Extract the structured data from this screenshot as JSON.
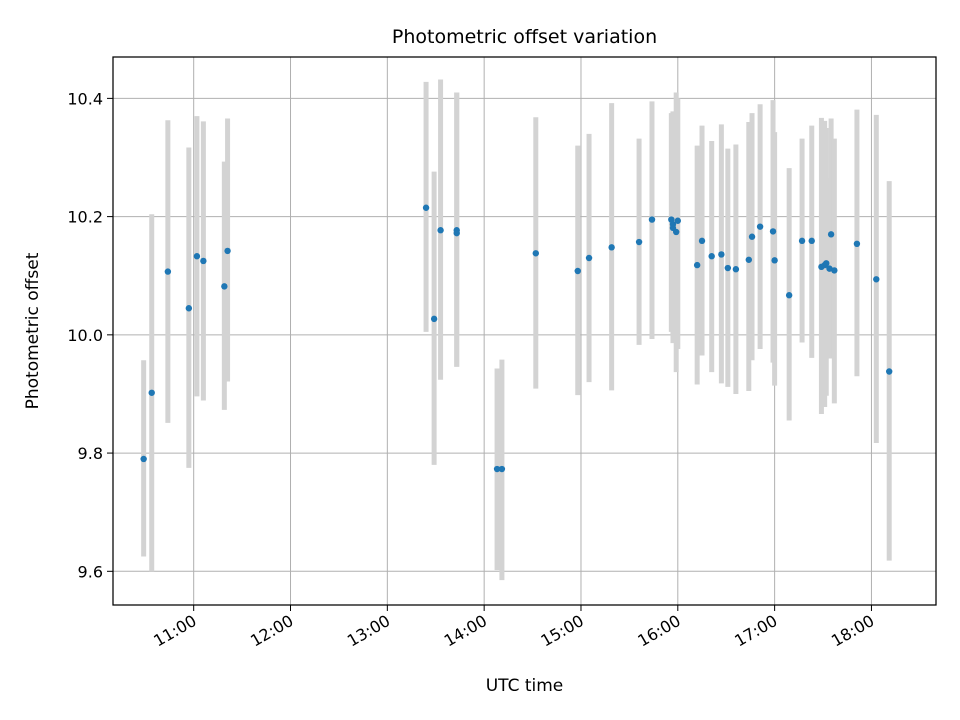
{
  "chart_data": {
    "type": "scatter",
    "title": "Photometric offset variation",
    "xlabel": "UTC time",
    "ylabel": "Photometric offset",
    "x_unit": "UTC hour",
    "xlim": [
      "10:10",
      "18:40"
    ],
    "ylim": [
      9.543,
      10.47
    ],
    "x_ticks": [
      "11:00",
      "12:00",
      "13:00",
      "14:00",
      "15:00",
      "16:00",
      "17:00",
      "18:00"
    ],
    "y_ticks": [
      "9.6",
      "9.8",
      "10.0",
      "10.2",
      "10.4"
    ],
    "grid": true,
    "colors": {
      "point": "#1f77b4",
      "errorbar": "#d3d3d3",
      "grid": "#b0b0b0"
    },
    "series": [
      {
        "points": [
          {
            "x": "10:29",
            "y": 9.79,
            "ylow": 9.625,
            "yhigh": 9.957
          },
          {
            "x": "10:34",
            "y": 9.902,
            "ylow": 9.6,
            "yhigh": 10.204
          },
          {
            "x": "10:44",
            "y": 10.107,
            "ylow": 9.851,
            "yhigh": 10.363
          },
          {
            "x": "10:57",
            "y": 10.045,
            "ylow": 9.775,
            "yhigh": 10.317
          },
          {
            "x": "11:02",
            "y": 10.133,
            "ylow": 9.896,
            "yhigh": 10.37
          },
          {
            "x": "11:06",
            "y": 10.125,
            "ylow": 9.889,
            "yhigh": 10.361
          },
          {
            "x": "11:19",
            "y": 10.082,
            "ylow": 9.873,
            "yhigh": 10.293
          },
          {
            "x": "11:21",
            "y": 10.142,
            "ylow": 9.921,
            "yhigh": 10.366
          },
          {
            "x": "13:24",
            "y": 10.215,
            "ylow": 10.005,
            "yhigh": 10.428
          },
          {
            "x": "13:29",
            "y": 10.027,
            "ylow": 9.78,
            "yhigh": 10.276
          },
          {
            "x": "13:33",
            "y": 10.177,
            "ylow": 9.924,
            "yhigh": 10.432
          },
          {
            "x": "13:43",
            "y": 10.177,
            "ylow": 9.946,
            "yhigh": 10.41
          },
          {
            "x": "13:43",
            "y": 10.172,
            "ylow": 9.946,
            "yhigh": 10.41
          },
          {
            "x": "14:08",
            "y": 9.773,
            "ylow": 9.602,
            "yhigh": 9.943
          },
          {
            "x": "14:11",
            "y": 9.773,
            "ylow": 9.585,
            "yhigh": 9.958
          },
          {
            "x": "14:32",
            "y": 10.138,
            "ylow": 9.909,
            "yhigh": 10.368
          },
          {
            "x": "14:58",
            "y": 10.108,
            "ylow": 9.898,
            "yhigh": 10.32
          },
          {
            "x": "15:05",
            "y": 10.13,
            "ylow": 9.92,
            "yhigh": 10.34
          },
          {
            "x": "15:19",
            "y": 10.148,
            "ylow": 9.906,
            "yhigh": 10.392
          },
          {
            "x": "15:36",
            "y": 10.157,
            "ylow": 9.983,
            "yhigh": 10.332
          },
          {
            "x": "15:44",
            "y": 10.195,
            "ylow": 9.993,
            "yhigh": 10.395
          },
          {
            "x": "15:56",
            "y": 10.195,
            "ylow": 10.005,
            "yhigh": 10.375
          },
          {
            "x": "15:57",
            "y": 10.187,
            "ylow": 10.0,
            "yhigh": 10.377
          },
          {
            "x": "15:57",
            "y": 10.181,
            "ylow": 9.986,
            "yhigh": 10.378
          },
          {
            "x": "15:59",
            "y": 10.174,
            "ylow": 9.937,
            "yhigh": 10.41
          },
          {
            "x": "16:00",
            "y": 10.193,
            "ylow": 9.976,
            "yhigh": 10.4
          },
          {
            "x": "16:12",
            "y": 10.118,
            "ylow": 9.916,
            "yhigh": 10.32
          },
          {
            "x": "16:15",
            "y": 10.159,
            "ylow": 9.965,
            "yhigh": 10.354
          },
          {
            "x": "16:21",
            "y": 10.133,
            "ylow": 9.937,
            "yhigh": 10.328
          },
          {
            "x": "16:27",
            "y": 10.136,
            "ylow": 9.918,
            "yhigh": 10.356
          },
          {
            "x": "16:31",
            "y": 10.113,
            "ylow": 9.912,
            "yhigh": 10.315
          },
          {
            "x": "16:36",
            "y": 10.111,
            "ylow": 9.9,
            "yhigh": 10.322
          },
          {
            "x": "16:44",
            "y": 10.127,
            "ylow": 9.905,
            "yhigh": 10.36
          },
          {
            "x": "16:46",
            "y": 10.166,
            "ylow": 9.957,
            "yhigh": 10.375
          },
          {
            "x": "16:51",
            "y": 10.183,
            "ylow": 9.976,
            "yhigh": 10.39
          },
          {
            "x": "16:59",
            "y": 10.175,
            "ylow": 9.953,
            "yhigh": 10.397
          },
          {
            "x": "17:00",
            "y": 10.126,
            "ylow": 9.914,
            "yhigh": 10.343
          },
          {
            "x": "17:09",
            "y": 10.067,
            "ylow": 9.855,
            "yhigh": 10.282
          },
          {
            "x": "17:17",
            "y": 10.159,
            "ylow": 9.987,
            "yhigh": 10.332
          },
          {
            "x": "17:23",
            "y": 10.159,
            "ylow": 9.961,
            "yhigh": 10.354
          },
          {
            "x": "17:29",
            "y": 10.115,
            "ylow": 9.866,
            "yhigh": 10.367
          },
          {
            "x": "17:31",
            "y": 10.118,
            "ylow": 9.878,
            "yhigh": 10.362
          },
          {
            "x": "17:32",
            "y": 10.121,
            "ylow": 9.897,
            "yhigh": 10.35
          },
          {
            "x": "17:34",
            "y": 10.112,
            "ylow": 9.96,
            "yhigh": 10.265
          },
          {
            "x": "17:35",
            "y": 10.17,
            "ylow": 9.961,
            "yhigh": 10.366
          },
          {
            "x": "17:37",
            "y": 10.109,
            "ylow": 9.884,
            "yhigh": 10.332
          },
          {
            "x": "17:51",
            "y": 10.154,
            "ylow": 9.93,
            "yhigh": 10.381
          },
          {
            "x": "18:03",
            "y": 10.094,
            "ylow": 9.817,
            "yhigh": 10.372
          },
          {
            "x": "18:11",
            "y": 9.938,
            "ylow": 9.618,
            "yhigh": 10.26
          }
        ]
      }
    ]
  }
}
